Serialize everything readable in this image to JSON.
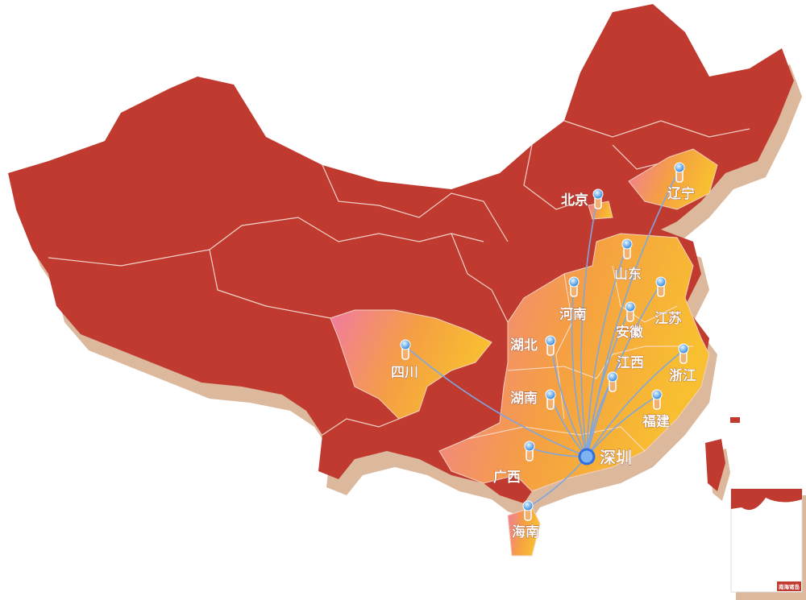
{
  "hub": {
    "name": "深圳",
    "color": "#2f6fe0"
  },
  "cities": [
    {
      "name": "北京"
    },
    {
      "name": "辽宁"
    },
    {
      "name": "山东"
    },
    {
      "name": "河南"
    },
    {
      "name": "江苏"
    },
    {
      "name": "安徽"
    },
    {
      "name": "湖北"
    },
    {
      "name": "四川"
    },
    {
      "name": "江西"
    },
    {
      "name": "浙江"
    },
    {
      "name": "福建"
    },
    {
      "name": "湖南"
    },
    {
      "name": "广西"
    },
    {
      "name": "海南"
    }
  ],
  "colors": {
    "country": "#c03a30",
    "shadow": "#dcb89c",
    "highlight_start": "#f07aa0",
    "highlight_end": "#f8b830",
    "route": "#7fa6e0",
    "border": "#f3d3c8"
  },
  "inset": {
    "label": "南海诸岛"
  }
}
